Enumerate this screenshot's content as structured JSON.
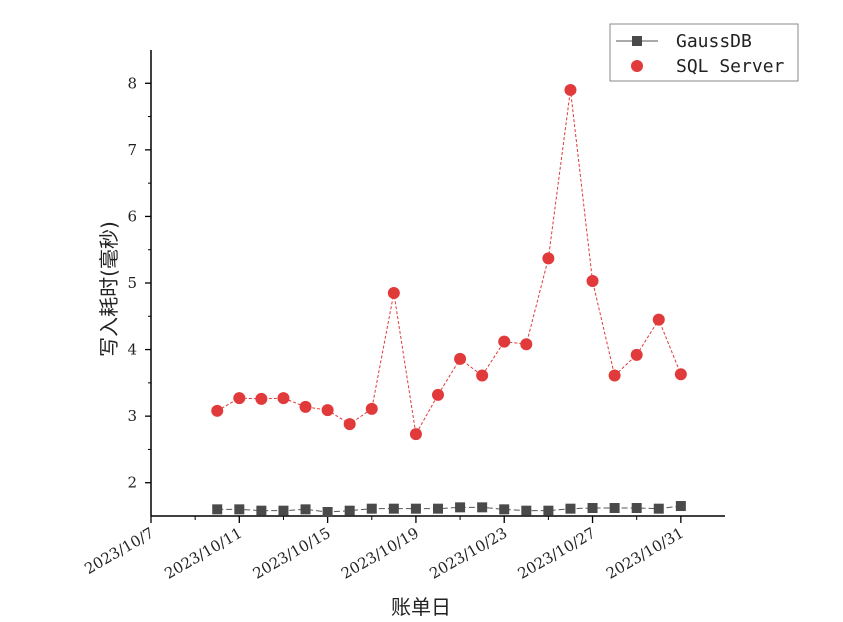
{
  "chart_data": {
    "type": "line",
    "xlabel": "账单日",
    "ylabel": "写入耗时(毫秒)",
    "x_tick_labels": [
      "2023/10/7",
      "2023/10/11",
      "2023/10/15",
      "2023/10/19",
      "2023/10/23",
      "2023/10/27",
      "2023/10/31"
    ],
    "y_ticks": [
      2,
      3,
      4,
      5,
      6,
      7,
      8
    ],
    "ylim": [
      1.5,
      8.5
    ],
    "xlim": [
      "2023/10/7",
      "2023/11/2"
    ],
    "x": [
      "2023/10/10",
      "2023/10/11",
      "2023/10/12",
      "2023/10/13",
      "2023/10/14",
      "2023/10/15",
      "2023/10/16",
      "2023/10/17",
      "2023/10/18",
      "2023/10/19",
      "2023/10/20",
      "2023/10/21",
      "2023/10/22",
      "2023/10/23",
      "2023/10/24",
      "2023/10/25",
      "2023/10/26",
      "2023/10/27",
      "2023/10/28",
      "2023/10/29",
      "2023/10/30",
      "2023/10/31"
    ],
    "series": [
      {
        "name": "GaussDB",
        "marker": "square",
        "color": "#4a4a4a",
        "line_color": "#555555",
        "values": [
          1.6,
          1.6,
          1.58,
          1.58,
          1.6,
          1.56,
          1.58,
          1.61,
          1.61,
          1.61,
          1.61,
          1.63,
          1.63,
          1.6,
          1.58,
          1.58,
          1.61,
          1.62,
          1.62,
          1.62,
          1.61,
          1.65
        ]
      },
      {
        "name": "SQL Server",
        "marker": "circle",
        "color": "#e03a3a",
        "line_color": "#e03a3a",
        "values": [
          3.08,
          3.27,
          3.26,
          3.27,
          3.14,
          3.09,
          2.88,
          3.11,
          4.85,
          2.73,
          3.32,
          3.86,
          3.61,
          4.12,
          4.08,
          5.37,
          7.9,
          5.03,
          3.61,
          3.92,
          4.45,
          3.63
        ]
      }
    ],
    "legend_position": "top-right",
    "grid": false
  }
}
